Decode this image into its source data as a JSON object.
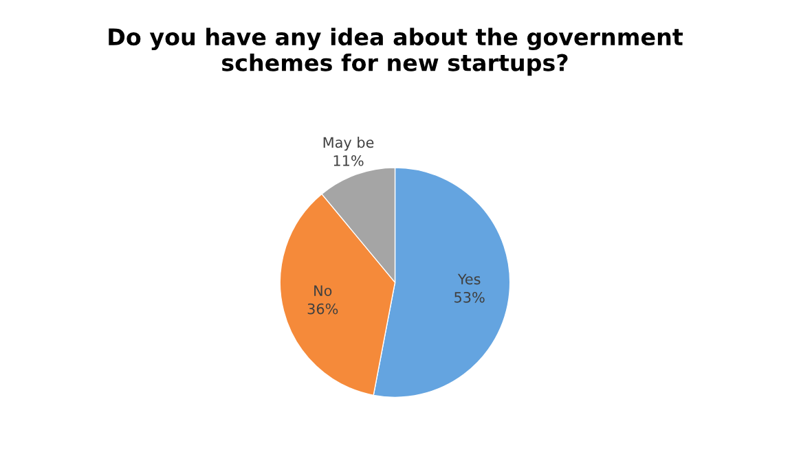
{
  "chart_data": {
    "type": "pie",
    "title": "Do you have any idea about the government\nschemes for new startups?",
    "categories": [
      "Yes",
      "No",
      "May be"
    ],
    "values": [
      53,
      36,
      11
    ],
    "value_labels": [
      "53%",
      "36%",
      "11%"
    ],
    "colors": [
      "#64a4e0",
      "#f58a3a",
      "#a5a5a5"
    ],
    "legend": false
  }
}
